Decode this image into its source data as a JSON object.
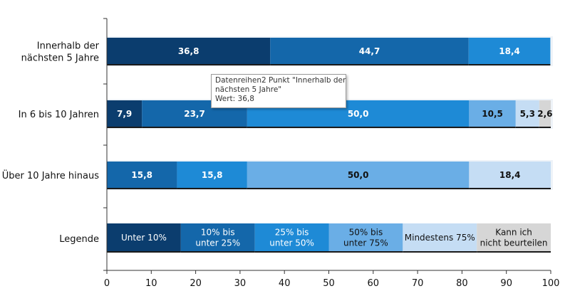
{
  "chart_data": {
    "type": "bar",
    "orientation": "horizontal",
    "stacked": true,
    "xlim": [
      0,
      100
    ],
    "x_ticks": [
      "0",
      "10",
      "20",
      "30",
      "40",
      "50",
      "60",
      "70",
      "80",
      "90",
      "100"
    ],
    "categories": [
      {
        "label_lines": [
          "Innerhalb der",
          "nächsten 5 Jahre"
        ],
        "values": [
          36.8,
          44.7,
          18.4
        ],
        "labels": [
          "36,8",
          "44,7",
          "18,4"
        ],
        "colors": [
          "#0b3d6e",
          "#1467aa",
          "#1e8ad6"
        ]
      },
      {
        "label_lines": [
          "In 6 bis 10 Jahren"
        ],
        "values": [
          7.9,
          23.7,
          50.0,
          10.5,
          5.3,
          2.6
        ],
        "labels": [
          "7,9",
          "23,7",
          "50,0",
          "10,5",
          "5,3",
          "2,6"
        ],
        "colors": [
          "#0b3d6e",
          "#1467aa",
          "#1e8ad6",
          "#6aaee6",
          "#c5ddf4",
          "#d6d6d6"
        ]
      },
      {
        "label_lines": [
          "Über 10 Jahre hinaus"
        ],
        "values": [
          15.8,
          15.8,
          50.0,
          18.4
        ],
        "labels": [
          "15,8",
          "15,8",
          "50,0",
          "18,4"
        ],
        "colors": [
          "#1467aa",
          "#1e8ad6",
          "#6aaee6",
          "#c5ddf4"
        ]
      }
    ],
    "legend": {
      "label": "Legende",
      "items": [
        {
          "lines": [
            "Unter 10%"
          ],
          "color": "#0b3d6e",
          "text_color": "#ffffff"
        },
        {
          "lines": [
            "10% bis",
            "unter 25%"
          ],
          "color": "#1467aa",
          "text_color": "#ffffff"
        },
        {
          "lines": [
            "25% bis",
            "unter 50%"
          ],
          "color": "#1e8ad6",
          "text_color": "#ffffff"
        },
        {
          "lines": [
            "50% bis",
            "unter 75%"
          ],
          "color": "#6aaee6",
          "text_color": "#111111"
        },
        {
          "lines": [
            "Mindestens 75%"
          ],
          "color": "#c5ddf4",
          "text_color": "#111111"
        },
        {
          "lines": [
            "Kann ich",
            "nicht beurteilen"
          ],
          "color": "#d6d6d6",
          "text_color": "#111111"
        }
      ]
    },
    "tooltip": {
      "line1": "Datenreihen2 Punkt \"Innerhalb der",
      "line2": "nächsten 5 Jahre\"",
      "line3": "Wert: 36,8"
    }
  }
}
